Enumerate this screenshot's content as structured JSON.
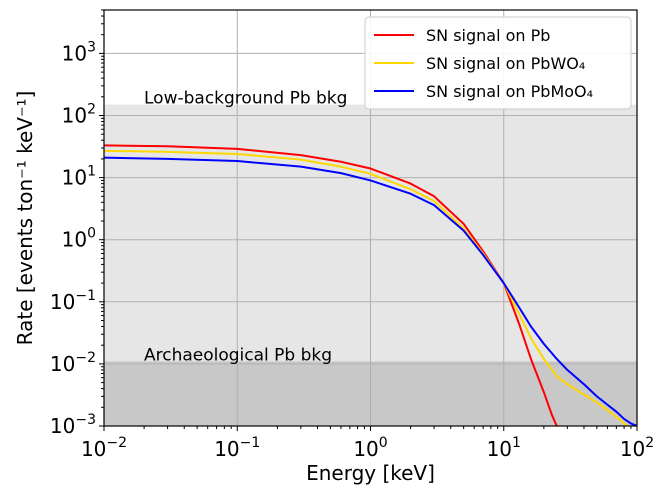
{
  "chart_data": {
    "type": "line",
    "xlabel": "Energy [keV]",
    "ylabel": "Rate [events ton⁻¹ keV⁻¹]",
    "xscale": "log",
    "yscale": "log",
    "xlim": [
      0.01,
      100
    ],
    "ylim": [
      0.001,
      5000
    ],
    "grid": true,
    "legend_position": "top-right",
    "x_tick_labels": [
      "10⁻²",
      "10⁻¹",
      "10⁰",
      "10¹",
      "10²"
    ],
    "y_tick_labels": [
      "10⁻³",
      "10⁻²",
      "10⁻¹",
      "10⁰",
      "10¹",
      "10²",
      "10³"
    ],
    "annotations": [
      {
        "text": "Low-background Pb bkg"
      },
      {
        "text": "Archaeological Pb bkg"
      }
    ],
    "background_bands": [
      {
        "name": "Low-background Pb bkg",
        "y_upper": 150,
        "color": "#e6e6e6"
      },
      {
        "name": "Archaeological Pb bkg",
        "y_upper": 0.011,
        "color": "#c8c8c8"
      }
    ],
    "series": [
      {
        "name": "SN signal on Pb",
        "color": "#ff0000",
        "x": [
          0.01,
          0.03,
          0.1,
          0.3,
          0.6,
          1,
          2,
          3,
          5,
          7,
          10,
          13,
          16,
          20,
          23,
          25
        ],
        "y": [
          33,
          32,
          29,
          23,
          18,
          14,
          8,
          5,
          1.8,
          0.65,
          0.2,
          0.045,
          0.012,
          0.0035,
          0.0015,
          0.001
        ]
      },
      {
        "name": "SN signal on PbWO₄",
        "color": "#ffd700",
        "x": [
          0.01,
          0.03,
          0.1,
          0.3,
          0.6,
          1,
          2,
          3,
          5,
          7,
          10,
          13,
          16,
          20,
          25,
          30,
          40,
          50,
          60,
          70,
          80,
          90
        ],
        "y": [
          27,
          26,
          24,
          19.5,
          15,
          11.5,
          6.5,
          4.2,
          1.5,
          0.6,
          0.2,
          0.065,
          0.026,
          0.012,
          0.0063,
          0.0047,
          0.0032,
          0.0024,
          0.0018,
          0.0014,
          0.0011,
          0.0009
        ]
      },
      {
        "name": "SN signal on PbMoO₄",
        "color": "#0000ff",
        "x": [
          0.01,
          0.03,
          0.1,
          0.3,
          0.6,
          1,
          2,
          3,
          5,
          7,
          10,
          13,
          16,
          20,
          25,
          30,
          40,
          50,
          60,
          70,
          80,
          90,
          100
        ],
        "y": [
          21,
          20,
          18.5,
          15,
          11.8,
          9,
          5.5,
          3.6,
          1.4,
          0.57,
          0.2,
          0.082,
          0.04,
          0.021,
          0.012,
          0.008,
          0.0047,
          0.003,
          0.0022,
          0.0017,
          0.0013,
          0.0011,
          0.001
        ]
      }
    ]
  }
}
